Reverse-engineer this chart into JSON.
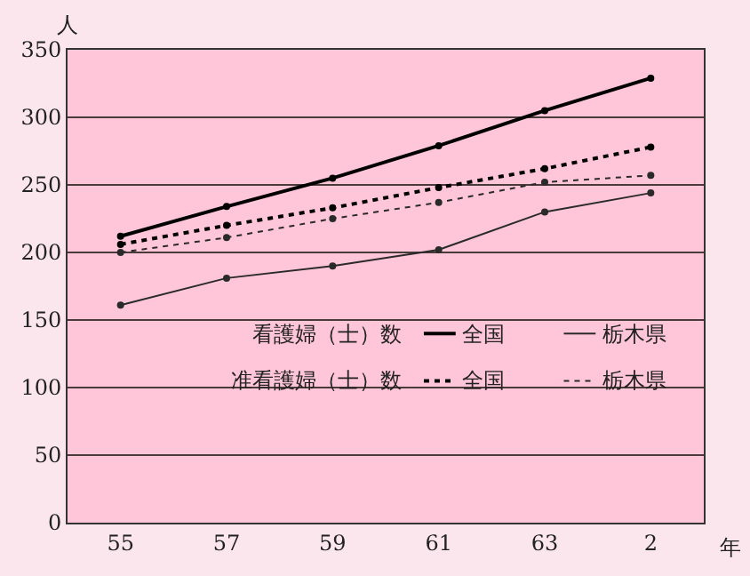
{
  "chart_data": {
    "type": "line",
    "xlabel": "年",
    "ylabel": "人",
    "categories": [
      "55",
      "57",
      "59",
      "61",
      "63",
      "2"
    ],
    "series": [
      {
        "name": "全国",
        "color": "#000000",
        "line_style": "solid",
        "values": [
          212,
          234,
          255,
          279,
          305,
          329
        ]
      },
      {
        "name": "栃木県",
        "color": "#2a2a2a",
        "line_style": "solid",
        "values": [
          161,
          181,
          190,
          202,
          230,
          244
        ]
      },
      {
        "name": "全国",
        "color": "#000000",
        "line_style": "dotted",
        "values": [
          206,
          220,
          233,
          248,
          262,
          278
        ]
      },
      {
        "name": "栃木県",
        "color": "#2a2a2a",
        "line_style": "dotted",
        "values": [
          200,
          211,
          225,
          237,
          252,
          257
        ]
      }
    ],
    "annotations": [
      "看護婦（士）数",
      "准看護婦（士）数"
    ],
    "ylim": [
      0,
      350
    ],
    "yticks": [
      0,
      50,
      100,
      150,
      200,
      250,
      300,
      350
    ],
    "grid": "y",
    "legend": "bottom right",
    "marker": "circle"
  }
}
